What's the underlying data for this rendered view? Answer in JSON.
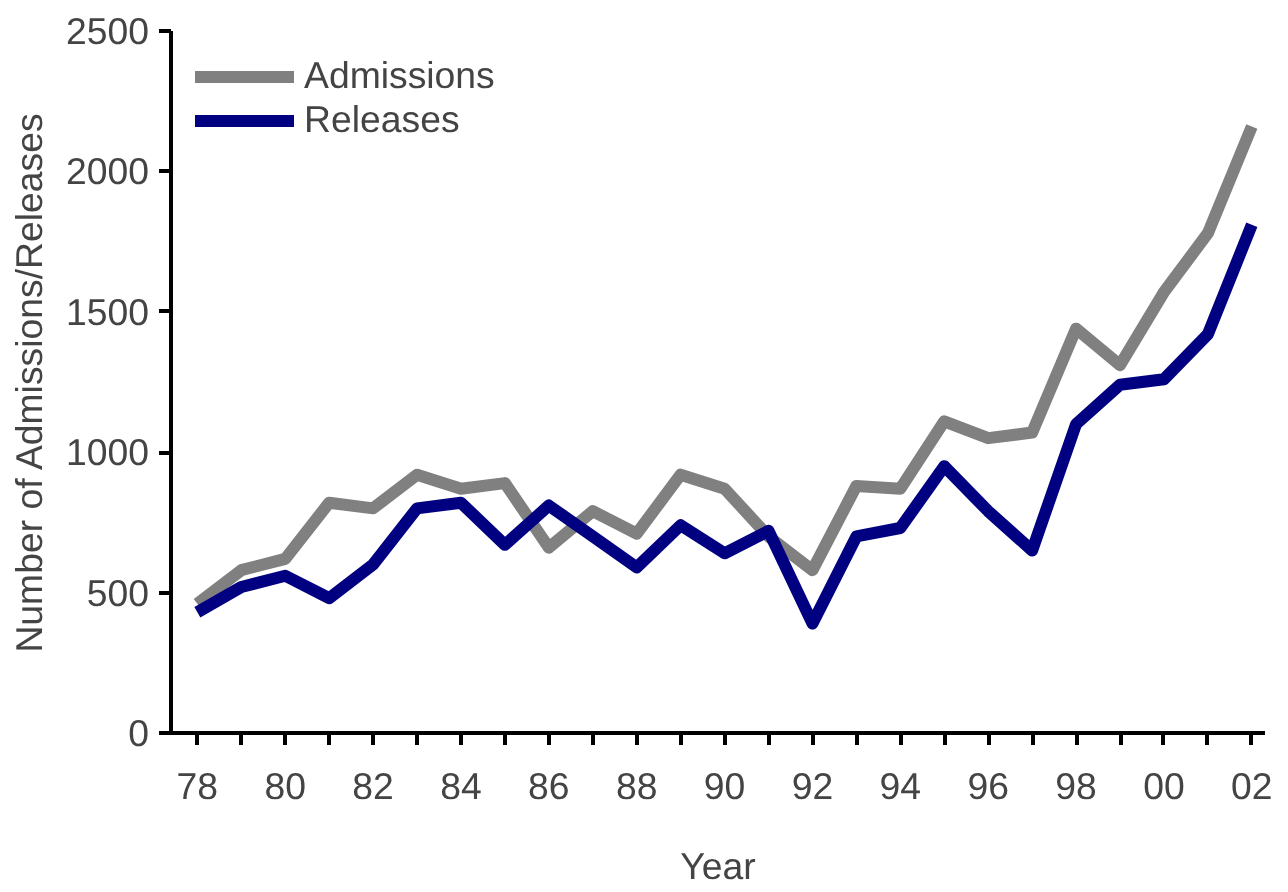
{
  "chart_data": {
    "type": "line",
    "xlabel": "Year",
    "ylabel": "Number of Admissions/Releases",
    "x": [
      1978,
      1979,
      1980,
      1981,
      1982,
      1983,
      1984,
      1985,
      1986,
      1987,
      1988,
      1989,
      1990,
      1991,
      1992,
      1993,
      1994,
      1995,
      1996,
      1997,
      1998,
      1999,
      2000,
      2001,
      2002
    ],
    "series": [
      {
        "name": "Admissions",
        "color": "#808080",
        "values": [
          460,
          580,
          620,
          820,
          800,
          920,
          870,
          890,
          660,
          790,
          710,
          920,
          870,
          700,
          580,
          880,
          870,
          1110,
          1050,
          1070,
          1440,
          1310,
          1570,
          1780,
          2160
        ]
      },
      {
        "name": "Releases",
        "color": "#000080",
        "values": [
          430,
          520,
          560,
          480,
          600,
          800,
          820,
          670,
          810,
          700,
          590,
          740,
          640,
          720,
          390,
          700,
          730,
          950,
          790,
          650,
          1100,
          1240,
          1260,
          1420,
          1810
        ]
      }
    ],
    "xlim": [
      1977.4,
      2002.3
    ],
    "xticks": [
      {
        "value": 1978,
        "label": "78"
      },
      {
        "value": 1979,
        "label": null
      },
      {
        "value": 1980,
        "label": "80"
      },
      {
        "value": 1981,
        "label": null
      },
      {
        "value": 1982,
        "label": "82"
      },
      {
        "value": 1983,
        "label": null
      },
      {
        "value": 1984,
        "label": "84"
      },
      {
        "value": 1985,
        "label": null
      },
      {
        "value": 1986,
        "label": "86"
      },
      {
        "value": 1987,
        "label": null
      },
      {
        "value": 1988,
        "label": "88"
      },
      {
        "value": 1989,
        "label": null
      },
      {
        "value": 1990,
        "label": "90"
      },
      {
        "value": 1991,
        "label": null
      },
      {
        "value": 1992,
        "label": "92"
      },
      {
        "value": 1993,
        "label": null
      },
      {
        "value": 1994,
        "label": "94"
      },
      {
        "value": 1995,
        "label": null
      },
      {
        "value": 1996,
        "label": "96"
      },
      {
        "value": 1997,
        "label": null
      },
      {
        "value": 1998,
        "label": "98"
      },
      {
        "value": 1999,
        "label": null
      },
      {
        "value": 2000,
        "label": "00"
      },
      {
        "value": 2001,
        "label": null
      },
      {
        "value": 2002,
        "label": "02"
      }
    ],
    "ylim": [
      0,
      2500
    ],
    "yticks": [
      0,
      500,
      1000,
      1500,
      2000,
      2500
    ],
    "grid": false,
    "legend": "top left",
    "marker": "none",
    "line_style": "solid"
  }
}
